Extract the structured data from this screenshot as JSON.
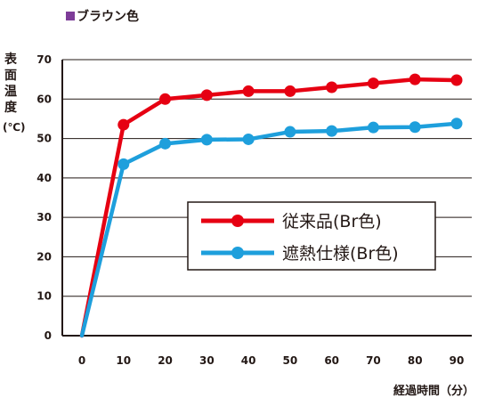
{
  "caption": {
    "marker_color": "#7d3c98",
    "text": "ブラウン色"
  },
  "y_axis_label": [
    "表",
    "面",
    "温",
    "度",
    "(℃)"
  ],
  "x_axis_label": "経過時間（分）",
  "colors": {
    "red": "#e60012",
    "blue": "#1e9fdc"
  },
  "chart_data": {
    "type": "line",
    "x": [
      0,
      10,
      20,
      30,
      40,
      50,
      60,
      70,
      80,
      90
    ],
    "xlim": [
      0,
      90
    ],
    "ylim": [
      0,
      70
    ],
    "xticks": [
      0,
      10,
      20,
      30,
      40,
      50,
      60,
      70,
      80,
      90
    ],
    "yticks": [
      0,
      10,
      20,
      30,
      40,
      50,
      60,
      70
    ],
    "grid": "horizontal",
    "legend_position": "center-right",
    "series": [
      {
        "name": "従来品(Br色)",
        "color": "#e60012",
        "values": [
          0,
          53.5,
          60,
          61,
          62,
          62,
          63,
          64,
          65,
          64.8
        ]
      },
      {
        "name": "遮熱仕様(Br色)",
        "color": "#1e9fdc",
        "values": [
          0,
          43.5,
          48.7,
          49.7,
          49.8,
          51.7,
          51.9,
          52.8,
          52.9,
          53.8
        ]
      }
    ]
  }
}
